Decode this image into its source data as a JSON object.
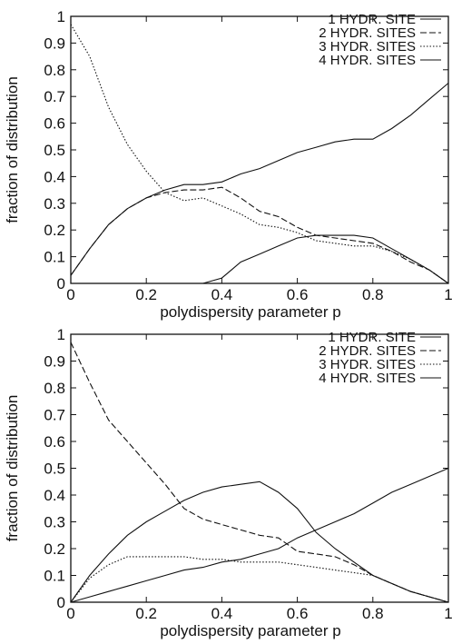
{
  "chart_data": [
    {
      "type": "line",
      "xlabel": "polydispersity parameter p",
      "ylabel": "fraction of distribution",
      "xlim": [
        0,
        1
      ],
      "ylim": [
        0,
        1
      ],
      "xticks": [
        "0",
        "0.2",
        "0.4",
        "0.6",
        "0.8",
        "1"
      ],
      "yticks": [
        "0",
        "0.1",
        "0.2",
        "0.3",
        "0.4",
        "0.5",
        "0.6",
        "0.7",
        "0.8",
        "0.9",
        "1"
      ],
      "grid": false,
      "legend_position": "top-right",
      "series": [
        {
          "name": "1 HYDR. SITE",
          "style": "solid",
          "x": [
            0,
            0.05,
            0.1,
            0.15,
            0.2,
            0.25,
            0.3,
            0.35,
            0.4,
            0.45,
            0.5,
            0.55,
            0.6,
            0.65,
            0.7,
            0.75,
            0.8,
            0.85,
            0.9,
            0.95,
            1.0
          ],
          "y": [
            0.03,
            0.13,
            0.22,
            0.28,
            0.32,
            0.35,
            0.37,
            0.37,
            0.38,
            0.41,
            0.43,
            0.46,
            0.49,
            0.51,
            0.53,
            0.54,
            0.54,
            0.58,
            0.63,
            0.69,
            0.75
          ]
        },
        {
          "name": "2 HYDR. SITES",
          "style": "dashed",
          "x": [
            0,
            0.05,
            0.1,
            0.15,
            0.2,
            0.25,
            0.3,
            0.35,
            0.4,
            0.45,
            0.5,
            0.55,
            0.6,
            0.65,
            0.7,
            0.75,
            0.8,
            0.85,
            0.9,
            0.95,
            1.0
          ],
          "y": [
            0.03,
            0.13,
            0.22,
            0.28,
            0.32,
            0.34,
            0.35,
            0.35,
            0.36,
            0.32,
            0.27,
            0.25,
            0.21,
            0.18,
            0.17,
            0.16,
            0.15,
            0.12,
            0.08,
            0.05,
            0.0
          ]
        },
        {
          "name": "3 HYDR. SITES",
          "style": "dotted",
          "x": [
            0,
            0.05,
            0.1,
            0.15,
            0.2,
            0.25,
            0.3,
            0.35,
            0.4,
            0.45,
            0.5,
            0.55,
            0.6,
            0.65,
            0.7,
            0.75,
            0.8,
            0.85,
            0.9,
            0.95,
            1.0
          ],
          "y": [
            0.97,
            0.85,
            0.66,
            0.52,
            0.42,
            0.34,
            0.31,
            0.32,
            0.29,
            0.26,
            0.22,
            0.21,
            0.19,
            0.16,
            0.15,
            0.14,
            0.14,
            0.12,
            0.09,
            0.05,
            0.0
          ]
        },
        {
          "name": "4 HYDR. SITES",
          "style": "solid",
          "x": [
            0,
            0.05,
            0.1,
            0.15,
            0.2,
            0.25,
            0.3,
            0.35,
            0.4,
            0.45,
            0.5,
            0.55,
            0.6,
            0.65,
            0.7,
            0.75,
            0.8,
            0.85,
            0.9,
            0.95,
            1.0
          ],
          "y": [
            0.0,
            0.0,
            0.0,
            0.0,
            0.0,
            0.0,
            0.0,
            0.0,
            0.02,
            0.08,
            0.11,
            0.14,
            0.17,
            0.18,
            0.18,
            0.18,
            0.17,
            0.13,
            0.09,
            0.05,
            0.0
          ]
        }
      ]
    },
    {
      "type": "line",
      "xlabel": "polydispersity parameter p",
      "ylabel": "fraction of distribution",
      "xlim": [
        0,
        1
      ],
      "ylim": [
        0,
        1
      ],
      "xticks": [
        "0",
        "0.2",
        "0.4",
        "0.6",
        "0.8",
        "1"
      ],
      "yticks": [
        "0",
        "0.1",
        "0.2",
        "0.3",
        "0.4",
        "0.5",
        "0.6",
        "0.7",
        "0.8",
        "0.9",
        "1"
      ],
      "grid": false,
      "legend_position": "top-right",
      "series": [
        {
          "name": "1 HYDR. SITE",
          "style": "solid",
          "x": [
            0,
            0.05,
            0.1,
            0.15,
            0.2,
            0.25,
            0.3,
            0.35,
            0.4,
            0.45,
            0.5,
            0.55,
            0.6,
            0.65,
            0.7,
            0.75,
            0.8,
            0.85,
            0.9,
            0.95,
            1.0
          ],
          "y": [
            0.0,
            0.1,
            0.18,
            0.25,
            0.3,
            0.34,
            0.38,
            0.41,
            0.43,
            0.44,
            0.45,
            0.41,
            0.35,
            0.26,
            0.2,
            0.15,
            0.1,
            0.07,
            0.04,
            0.02,
            0.0
          ]
        },
        {
          "name": "2 HYDR. SITES",
          "style": "dashed",
          "x": [
            0,
            0.05,
            0.1,
            0.15,
            0.2,
            0.25,
            0.3,
            0.35,
            0.4,
            0.45,
            0.5,
            0.55,
            0.6,
            0.65,
            0.7,
            0.75,
            0.8,
            0.85,
            0.9,
            0.95,
            1.0
          ],
          "y": [
            0.97,
            0.82,
            0.68,
            0.6,
            0.52,
            0.44,
            0.35,
            0.31,
            0.29,
            0.27,
            0.25,
            0.24,
            0.19,
            0.18,
            0.17,
            0.14,
            0.1,
            0.07,
            0.04,
            0.02,
            0.0
          ]
        },
        {
          "name": "3 HYDR. SITES",
          "style": "dotted",
          "x": [
            0,
            0.05,
            0.1,
            0.15,
            0.2,
            0.25,
            0.3,
            0.35,
            0.4,
            0.45,
            0.5,
            0.55,
            0.6,
            0.65,
            0.7,
            0.75,
            0.8,
            0.85,
            0.9,
            0.95,
            1.0
          ],
          "y": [
            0.0,
            0.09,
            0.14,
            0.17,
            0.17,
            0.17,
            0.17,
            0.16,
            0.16,
            0.15,
            0.15,
            0.15,
            0.14,
            0.13,
            0.12,
            0.11,
            0.1,
            0.07,
            0.04,
            0.02,
            0.0
          ]
        },
        {
          "name": "4 HYDR. SITES",
          "style": "solid",
          "x": [
            0,
            0.05,
            0.1,
            0.15,
            0.2,
            0.25,
            0.3,
            0.35,
            0.4,
            0.45,
            0.5,
            0.55,
            0.6,
            0.65,
            0.7,
            0.75,
            0.8,
            0.85,
            0.9,
            0.95,
            1.0
          ],
          "y": [
            0.0,
            0.02,
            0.04,
            0.06,
            0.08,
            0.1,
            0.12,
            0.13,
            0.15,
            0.16,
            0.18,
            0.2,
            0.24,
            0.27,
            0.3,
            0.33,
            0.37,
            0.41,
            0.44,
            0.47,
            0.5
          ]
        }
      ]
    }
  ]
}
